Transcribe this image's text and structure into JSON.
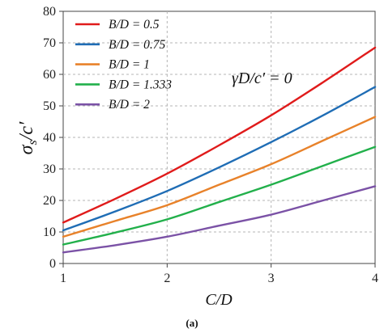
{
  "chart_data": {
    "type": "line",
    "xlabel": "C/D",
    "ylabel_main": "σ",
    "ylabel_sub": "s",
    "ylabel_rest": "/c′",
    "xlim": [
      1,
      4
    ],
    "ylim": [
      0,
      80
    ],
    "x_ticks": [
      "1",
      "2",
      "3",
      "4"
    ],
    "y_ticks": [
      "0",
      "10",
      "20",
      "30",
      "40",
      "50",
      "60",
      "70",
      "80"
    ],
    "grid": "dashed",
    "legend_position": "top-left",
    "annotation": "γD/c′ = 0",
    "caption": "(a)",
    "series": [
      {
        "name": "B/D = 0.5",
        "color": "#e01b1b",
        "x": [
          1,
          1.5,
          2,
          2.5,
          3,
          3.5,
          4
        ],
        "y": [
          13,
          20.5,
          28.5,
          37.5,
          47,
          57.5,
          68.5
        ]
      },
      {
        "name": "B/D = 0.75",
        "color": "#1f6db5",
        "x": [
          1,
          1.5,
          2,
          2.5,
          3,
          3.5,
          4
        ],
        "y": [
          10.5,
          16.5,
          23,
          30.5,
          38.5,
          47,
          56
        ]
      },
      {
        "name": "B/D = 1",
        "color": "#e8822a",
        "x": [
          1,
          1.5,
          2,
          2.5,
          3,
          3.5,
          4
        ],
        "y": [
          8.5,
          13.5,
          18.5,
          25,
          31.5,
          39,
          46.5
        ]
      },
      {
        "name": "B/D = 1.333",
        "color": "#22b04b",
        "x": [
          1,
          1.5,
          2,
          2.5,
          3,
          3.5,
          4
        ],
        "y": [
          6,
          9.8,
          14,
          19.5,
          25,
          31,
          37
        ]
      },
      {
        "name": "B/D = 2",
        "color": "#7b52a6",
        "x": [
          1,
          1.5,
          2,
          2.5,
          3,
          3.5,
          4
        ],
        "y": [
          3.5,
          5.8,
          8.5,
          12,
          15.5,
          20,
          24.5
        ]
      }
    ]
  }
}
